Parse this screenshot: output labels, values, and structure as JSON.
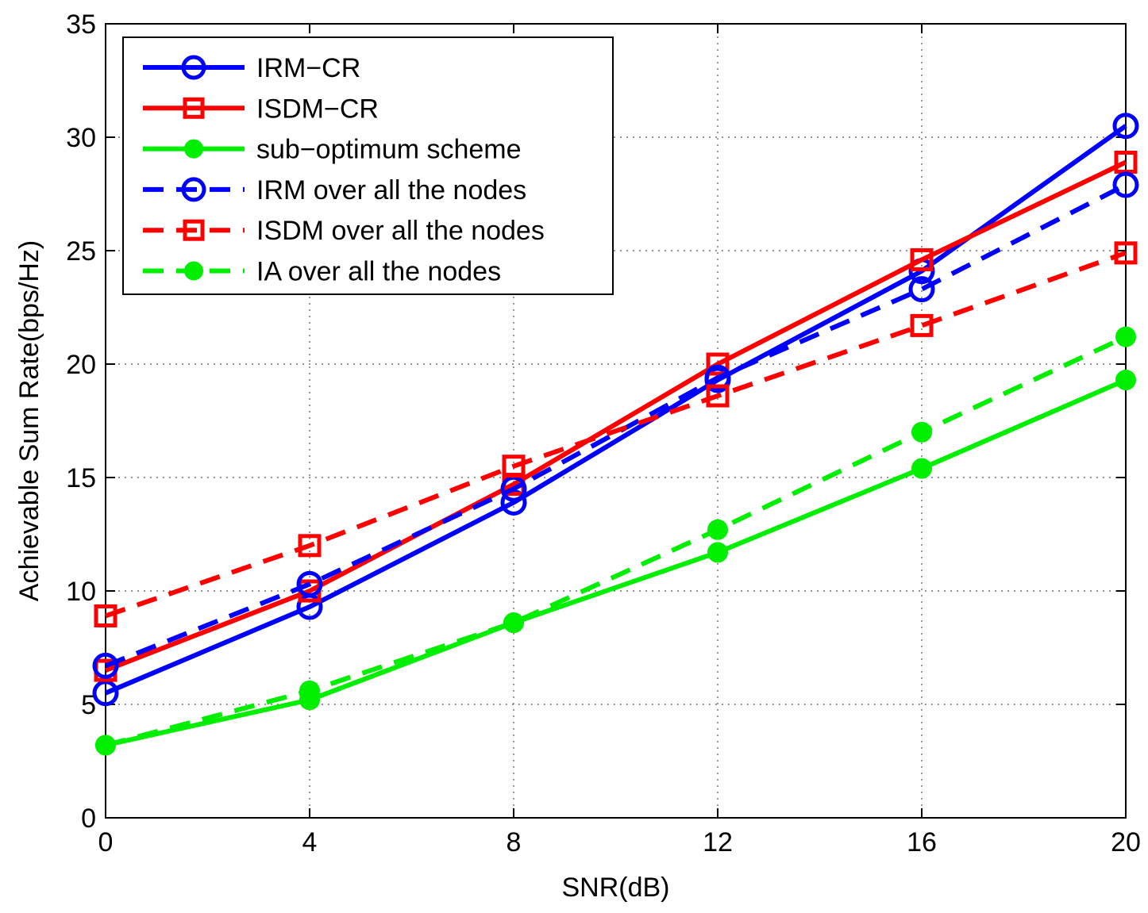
{
  "chart_data": {
    "type": "line",
    "title": "",
    "xlabel": "SNR(dB)",
    "ylabel": "Achievable Sum Rate(bps/Hz)",
    "x": [
      0,
      4,
      8,
      12,
      16,
      20
    ],
    "xlim": [
      0,
      20
    ],
    "ylim": [
      0,
      35
    ],
    "xticks": [
      "0",
      "4",
      "8",
      "12",
      "16",
      "20"
    ],
    "yticks": [
      "0",
      "5",
      "10",
      "15",
      "20",
      "25",
      "30",
      "35"
    ],
    "grid": true,
    "legend_position": "top-left",
    "series": [
      {
        "name": "IRM−CR",
        "color": "#0000ff",
        "dash": "solid",
        "marker": "circle-open",
        "values": [
          5.5,
          9.3,
          13.9,
          19.3,
          24.1,
          30.5
        ]
      },
      {
        "name": "ISDM−CR",
        "color": "#ff0000",
        "dash": "solid",
        "marker": "square-open",
        "values": [
          6.5,
          10.0,
          14.7,
          20.0,
          24.6,
          28.9
        ]
      },
      {
        "name": "sub−optimum scheme",
        "color": "#00ee00",
        "dash": "solid",
        "marker": "circle-filled",
        "values": [
          3.2,
          5.2,
          8.6,
          11.7,
          15.4,
          19.3
        ]
      },
      {
        "name": "IRM over all the nodes",
        "color": "#0000ff",
        "dash": "dashed",
        "marker": "circle-open",
        "values": [
          6.7,
          10.3,
          14.5,
          19.4,
          23.3,
          27.9
        ]
      },
      {
        "name": "ISDM over all the nodes",
        "color": "#ff0000",
        "dash": "dashed",
        "marker": "square-open",
        "values": [
          8.9,
          12.0,
          15.5,
          18.6,
          21.7,
          24.9
        ]
      },
      {
        "name": "IA over all the nodes",
        "color": "#00ee00",
        "dash": "dashed",
        "marker": "circle-filled",
        "values": [
          3.2,
          5.6,
          8.6,
          12.7,
          17.0,
          21.2
        ]
      }
    ]
  }
}
